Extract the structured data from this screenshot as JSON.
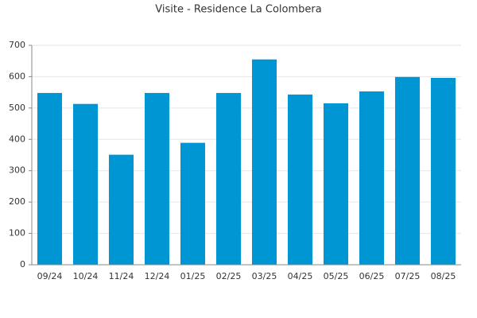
{
  "chart_data": {
    "type": "bar",
    "title": "Visite - Residence La Colombera",
    "categories": [
      "09/24",
      "10/24",
      "11/24",
      "12/24",
      "01/25",
      "02/25",
      "03/25",
      "04/25",
      "05/25",
      "06/25",
      "07/25",
      "08/25"
    ],
    "values": [
      548,
      513,
      351,
      548,
      389,
      548,
      655,
      543,
      515,
      553,
      599,
      596
    ],
    "color": "#0096d3",
    "ylim": [
      0,
      700
    ],
    "yticks": [
      0,
      100,
      200,
      300,
      400,
      500,
      600,
      700
    ],
    "grid": true
  }
}
